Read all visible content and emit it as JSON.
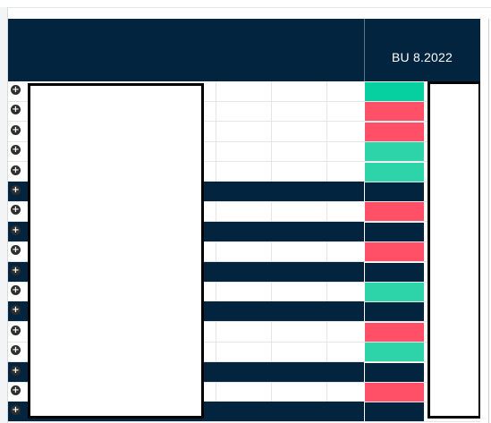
{
  "header": {
    "column_label": "BU 8.2022"
  },
  "colors": {
    "header_navy": "#03243f",
    "status_green": "#2dd4aa",
    "status_green_bright": "#06d0a0",
    "status_red": "#ff5067",
    "grid_line": "#e6e6e6"
  },
  "rows": [
    {
      "type": "light",
      "status": "green_bright",
      "expand_icon": "plus-circle-icon"
    },
    {
      "type": "light",
      "status": "red",
      "expand_icon": "plus-circle-icon"
    },
    {
      "type": "light",
      "status": "red",
      "expand_icon": "plus-circle-icon"
    },
    {
      "type": "light",
      "status": "green",
      "expand_icon": "plus-circle-icon"
    },
    {
      "type": "light",
      "status": "green",
      "expand_icon": "plus-circle-icon"
    },
    {
      "type": "dark",
      "status": "navy",
      "expand_icon": "plus-circle-icon"
    },
    {
      "type": "light",
      "status": "red",
      "expand_icon": "plus-circle-icon"
    },
    {
      "type": "dark",
      "status": "navy",
      "expand_icon": "plus-circle-icon"
    },
    {
      "type": "light",
      "status": "red",
      "expand_icon": "plus-circle-icon"
    },
    {
      "type": "dark",
      "status": "navy",
      "expand_icon": "plus-circle-icon"
    },
    {
      "type": "light",
      "status": "green",
      "expand_icon": "plus-circle-icon"
    },
    {
      "type": "dark",
      "status": "navy",
      "expand_icon": "plus-circle-icon"
    },
    {
      "type": "light",
      "status": "red",
      "expand_icon": "plus-circle-icon"
    },
    {
      "type": "light",
      "status": "green",
      "expand_icon": "plus-circle-icon"
    },
    {
      "type": "dark",
      "status": "navy",
      "expand_icon": "plus-circle-icon"
    },
    {
      "type": "light",
      "status": "red",
      "expand_icon": "plus-circle-icon"
    },
    {
      "type": "dark",
      "status": "navy",
      "expand_icon": "plus-circle-icon"
    }
  ]
}
